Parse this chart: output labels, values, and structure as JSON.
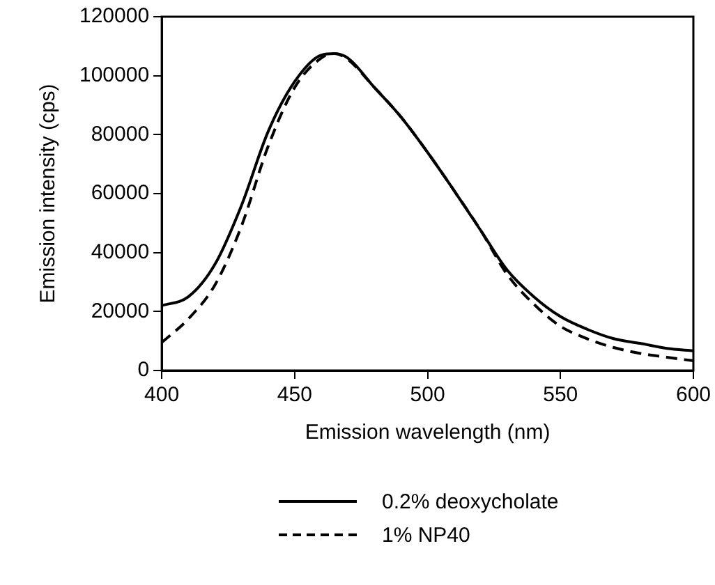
{
  "chart_data": {
    "type": "line",
    "xlabel": "Emission wavelength (nm)",
    "ylabel": "Emission intensity (cps)",
    "x": [
      400,
      410,
      420,
      430,
      440,
      450,
      460,
      465,
      470,
      480,
      490,
      500,
      510,
      520,
      530,
      540,
      550,
      560,
      570,
      580,
      590,
      600
    ],
    "series": [
      {
        "name": "0.2% deoxycholate",
        "color": "#000000",
        "line_style": "solid",
        "values": [
          22000,
          25000,
          36000,
          56000,
          81000,
          98000,
          107000,
          107500,
          106000,
          96000,
          86000,
          74000,
          61000,
          47500,
          34000,
          25000,
          18300,
          14000,
          10800,
          9200,
          7500,
          6700
        ]
      },
      {
        "name": "1% NP40",
        "color": "#000000",
        "line_style": "dashed",
        "values": [
          9500,
          17500,
          29000,
          49000,
          76000,
          96000,
          106000,
          107500,
          105500,
          96000,
          86000,
          74000,
          61000,
          47500,
          32500,
          22500,
          15000,
          10800,
          7800,
          5800,
          4500,
          3300
        ]
      }
    ],
    "xlim": [
      400,
      600
    ],
    "xticks": [
      400,
      450,
      500,
      550,
      600
    ],
    "ylim": [
      0,
      120000
    ],
    "yticks": [
      0,
      20000,
      40000,
      60000,
      80000,
      100000,
      120000
    ],
    "grid": false,
    "legend": "bottom",
    "marker": "none"
  }
}
